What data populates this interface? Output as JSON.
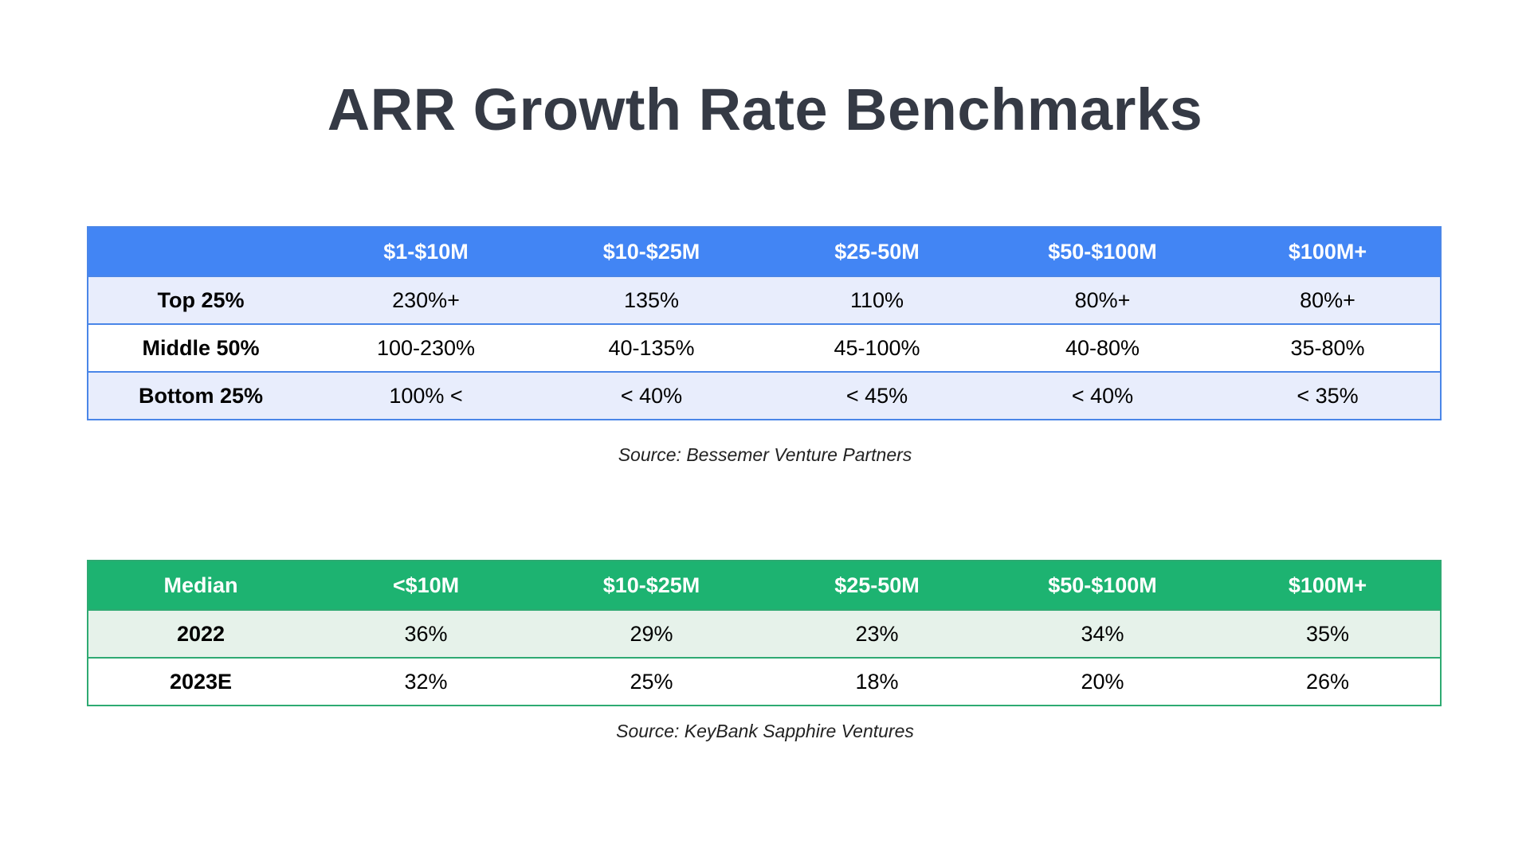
{
  "title": "ARR Growth Rate Benchmarks",
  "table1": {
    "headers": [
      "",
      "$1-$10M",
      "$10-$25M",
      "$25-50M",
      "$50-$100M",
      "$100M+"
    ],
    "rows": [
      [
        "Top 25%",
        "230%+",
        "135%",
        "110%",
        "80%+",
        "80%+"
      ],
      [
        "Middle 50%",
        "100-230%",
        "40-135%",
        "45-100%",
        "40-80%",
        "35-80%"
      ],
      [
        "Bottom 25%",
        "100% <",
        "< 40%",
        "< 45%",
        "< 40%",
        "< 35%"
      ]
    ],
    "source": "Source: Bessemer Venture Partners",
    "header_color": "#4285f4",
    "alt_row_color": "#e8edfc"
  },
  "table2": {
    "headers": [
      "Median",
      "<$10M",
      "$10-$25M",
      "$25-50M",
      "$50-$100M",
      "$100M+"
    ],
    "rows": [
      [
        "2022",
        "36%",
        "29%",
        "23%",
        "34%",
        "35%"
      ],
      [
        "2023E",
        "32%",
        "25%",
        "18%",
        "20%",
        "26%"
      ]
    ],
    "source": "Source: KeyBank Sapphire Ventures",
    "header_color": "#1db371",
    "alt_row_color": "#e6f2ea"
  }
}
